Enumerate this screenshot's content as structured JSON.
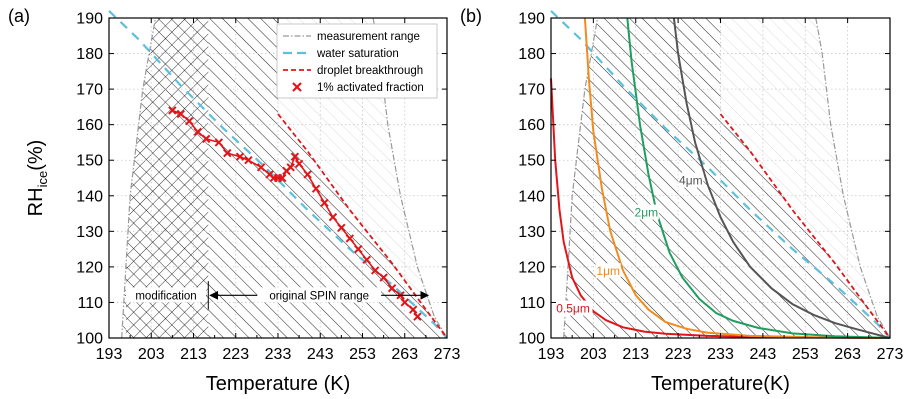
{
  "chart_data": [
    {
      "type": "line",
      "panel_label": "(a)",
      "xlabel": "Temperature (K)",
      "ylabel_main": "RH",
      "ylabel_sub": "ice",
      "ylabel_tail": "(%)",
      "xlim": [
        193,
        273
      ],
      "ylim": [
        100,
        190
      ],
      "xticks": [
        193,
        203,
        213,
        223,
        233,
        243,
        253,
        263,
        273
      ],
      "yticks": [
        100,
        110,
        120,
        130,
        140,
        150,
        160,
        170,
        180,
        190
      ],
      "grid": true,
      "legend_position": "top-right",
      "legend": [
        {
          "label": "measurement range",
          "style": "dash-dot",
          "color": "#999999"
        },
        {
          "label": "water saturation",
          "style": "dashed",
          "color": "#5bc0de"
        },
        {
          "label": "droplet breakthrough",
          "style": "dashed",
          "color": "#e0161b"
        },
        {
          "label": "1% activated fraction",
          "style": "marker-x",
          "color": "#e0161b"
        }
      ],
      "series": [
        {
          "name": "measurement range",
          "color": "#999999",
          "left": {
            "x": [
              196,
              197,
              198,
              199.5,
              201,
              202.5,
              204
            ],
            "y": [
              100,
              120,
              140,
              155,
              170,
              180,
              190
            ]
          },
          "right": {
            "x": [
              255.5,
              257,
              259,
              262,
              266,
              270,
              273
            ],
            "y": [
              190,
              180,
              160,
              140,
              120,
              106,
              100
            ]
          }
        },
        {
          "name": "water saturation",
          "color": "#5bc0de",
          "x": [
            193,
            200,
            210,
            220,
            230,
            240,
            250,
            260,
            270,
            273
          ],
          "y": [
            192,
            184,
            171,
            159,
            148,
            136,
            125,
            115,
            104,
            100
          ]
        },
        {
          "name": "droplet breakthrough",
          "color": "#e0161b",
          "x": [
            233,
            240,
            250,
            260,
            268,
            273
          ],
          "y": [
            163,
            152.5,
            136,
            121,
            108,
            100
          ]
        },
        {
          "name": "1% activated fraction",
          "color": "#e0161b",
          "x": [
            208,
            210,
            212,
            214,
            216,
            219,
            221,
            224,
            226,
            229,
            231,
            232,
            233,
            234,
            235,
            236,
            237,
            238,
            240,
            242,
            244,
            246,
            248,
            250,
            252,
            254,
            256,
            258,
            260,
            262,
            263,
            265,
            266
          ],
          "y": [
            164,
            163,
            161,
            158,
            156,
            155,
            152,
            151,
            150,
            148,
            146,
            145,
            145,
            145,
            147,
            148,
            151,
            149,
            146,
            142,
            138,
            134,
            131,
            128,
            125,
            122,
            119,
            117,
            114,
            112,
            110,
            108,
            106
          ]
        }
      ],
      "hatch_regions": [
        {
          "name": "modification",
          "x_range": [
            197,
            216.5
          ],
          "style": "cross-hatch"
        },
        {
          "name": "original SPIN range",
          "x_range": [
            216.5,
            233
          ],
          "style": "diagonal"
        }
      ],
      "annotations": [
        {
          "text": "modification",
          "x_from": 196.5,
          "x_to": 216.5,
          "y": 112
        },
        {
          "text": "original SPIN range",
          "x_from": 216.5,
          "x_to": 269,
          "y": 112
        }
      ]
    },
    {
      "type": "line",
      "panel_label": "(b)",
      "xlabel": "Temperature(K)",
      "xlim": [
        193,
        273
      ],
      "ylim": [
        100,
        190
      ],
      "xticks": [
        193,
        203,
        213,
        223,
        233,
        243,
        253,
        263,
        273
      ],
      "yticks": [
        100,
        110,
        120,
        130,
        140,
        150,
        160,
        170,
        180,
        190
      ],
      "grid": true,
      "series": [
        {
          "name": "0.5μm",
          "color": "#e0161b",
          "x": [
            193,
            194,
            195,
            196,
            198,
            200,
            203,
            206,
            210,
            215,
            220,
            230,
            245,
            260,
            273
          ],
          "y": [
            173,
            150,
            136,
            127,
            117,
            112,
            107.5,
            105,
            103,
            101.8,
            101.2,
            100.6,
            100.2,
            100.1,
            100
          ]
        },
        {
          "name": "1μm",
          "color": "#f28c1d",
          "x": [
            201,
            202,
            203,
            205,
            207,
            210,
            213,
            216,
            220,
            225,
            230,
            240,
            255,
            273
          ],
          "y": [
            190,
            172,
            158,
            142,
            130,
            119,
            112,
            108,
            104.5,
            102.6,
            101.5,
            100.6,
            100.2,
            100
          ]
        },
        {
          "name": "2μm",
          "color": "#1f9e60",
          "x": [
            211,
            212,
            214,
            216,
            218,
            221,
            224,
            228,
            232,
            236,
            242,
            250,
            260,
            273
          ],
          "y": [
            190,
            178,
            160,
            146,
            135,
            124,
            117,
            111,
            107,
            104.8,
            102.8,
            101.3,
            100.5,
            100
          ]
        },
        {
          "name": "4μm",
          "color": "#555555",
          "x": [
            222,
            223,
            225,
            227,
            230,
            233,
            236,
            240,
            245,
            250,
            255,
            260,
            265,
            273
          ],
          "y": [
            190,
            180,
            166,
            155,
            143,
            134,
            127,
            120,
            114,
            109.5,
            106.5,
            104.2,
            102.5,
            100
          ]
        },
        {
          "name": "measurement range",
          "color": "#999999",
          "left": {
            "x": [
              196,
              197,
              198,
              199.5,
              201,
              202.5,
              204
            ],
            "y": [
              100,
              120,
              140,
              155,
              170,
              180,
              190
            ]
          },
          "right": {
            "x": [
              255.5,
              257,
              259,
              262,
              266,
              270,
              273
            ],
            "y": [
              190,
              180,
              160,
              140,
              120,
              106,
              100
            ]
          }
        },
        {
          "name": "water saturation",
          "color": "#5bc0de",
          "x": [
            193,
            200,
            210,
            220,
            230,
            240,
            250,
            260,
            270,
            273
          ],
          "y": [
            192,
            184,
            171,
            159,
            148,
            136,
            125,
            115,
            104,
            100
          ]
        },
        {
          "name": "droplet breakthrough",
          "color": "#e0161b",
          "x": [
            233,
            240,
            250,
            260,
            268,
            273
          ],
          "y": [
            163,
            152.5,
            136,
            121,
            108,
            100
          ]
        }
      ],
      "curve_labels": [
        {
          "text": "0.5μm",
          "x": 198.2,
          "y": 108,
          "color": "#e0161b"
        },
        {
          "text": "1μm",
          "x": 206.5,
          "y": 118.5,
          "color": "#f28c1d"
        },
        {
          "text": "2μm",
          "x": 215.5,
          "y": 135,
          "color": "#1f9e60"
        },
        {
          "text": "4μm",
          "x": 226,
          "y": 144,
          "color": "#555555"
        }
      ]
    }
  ]
}
